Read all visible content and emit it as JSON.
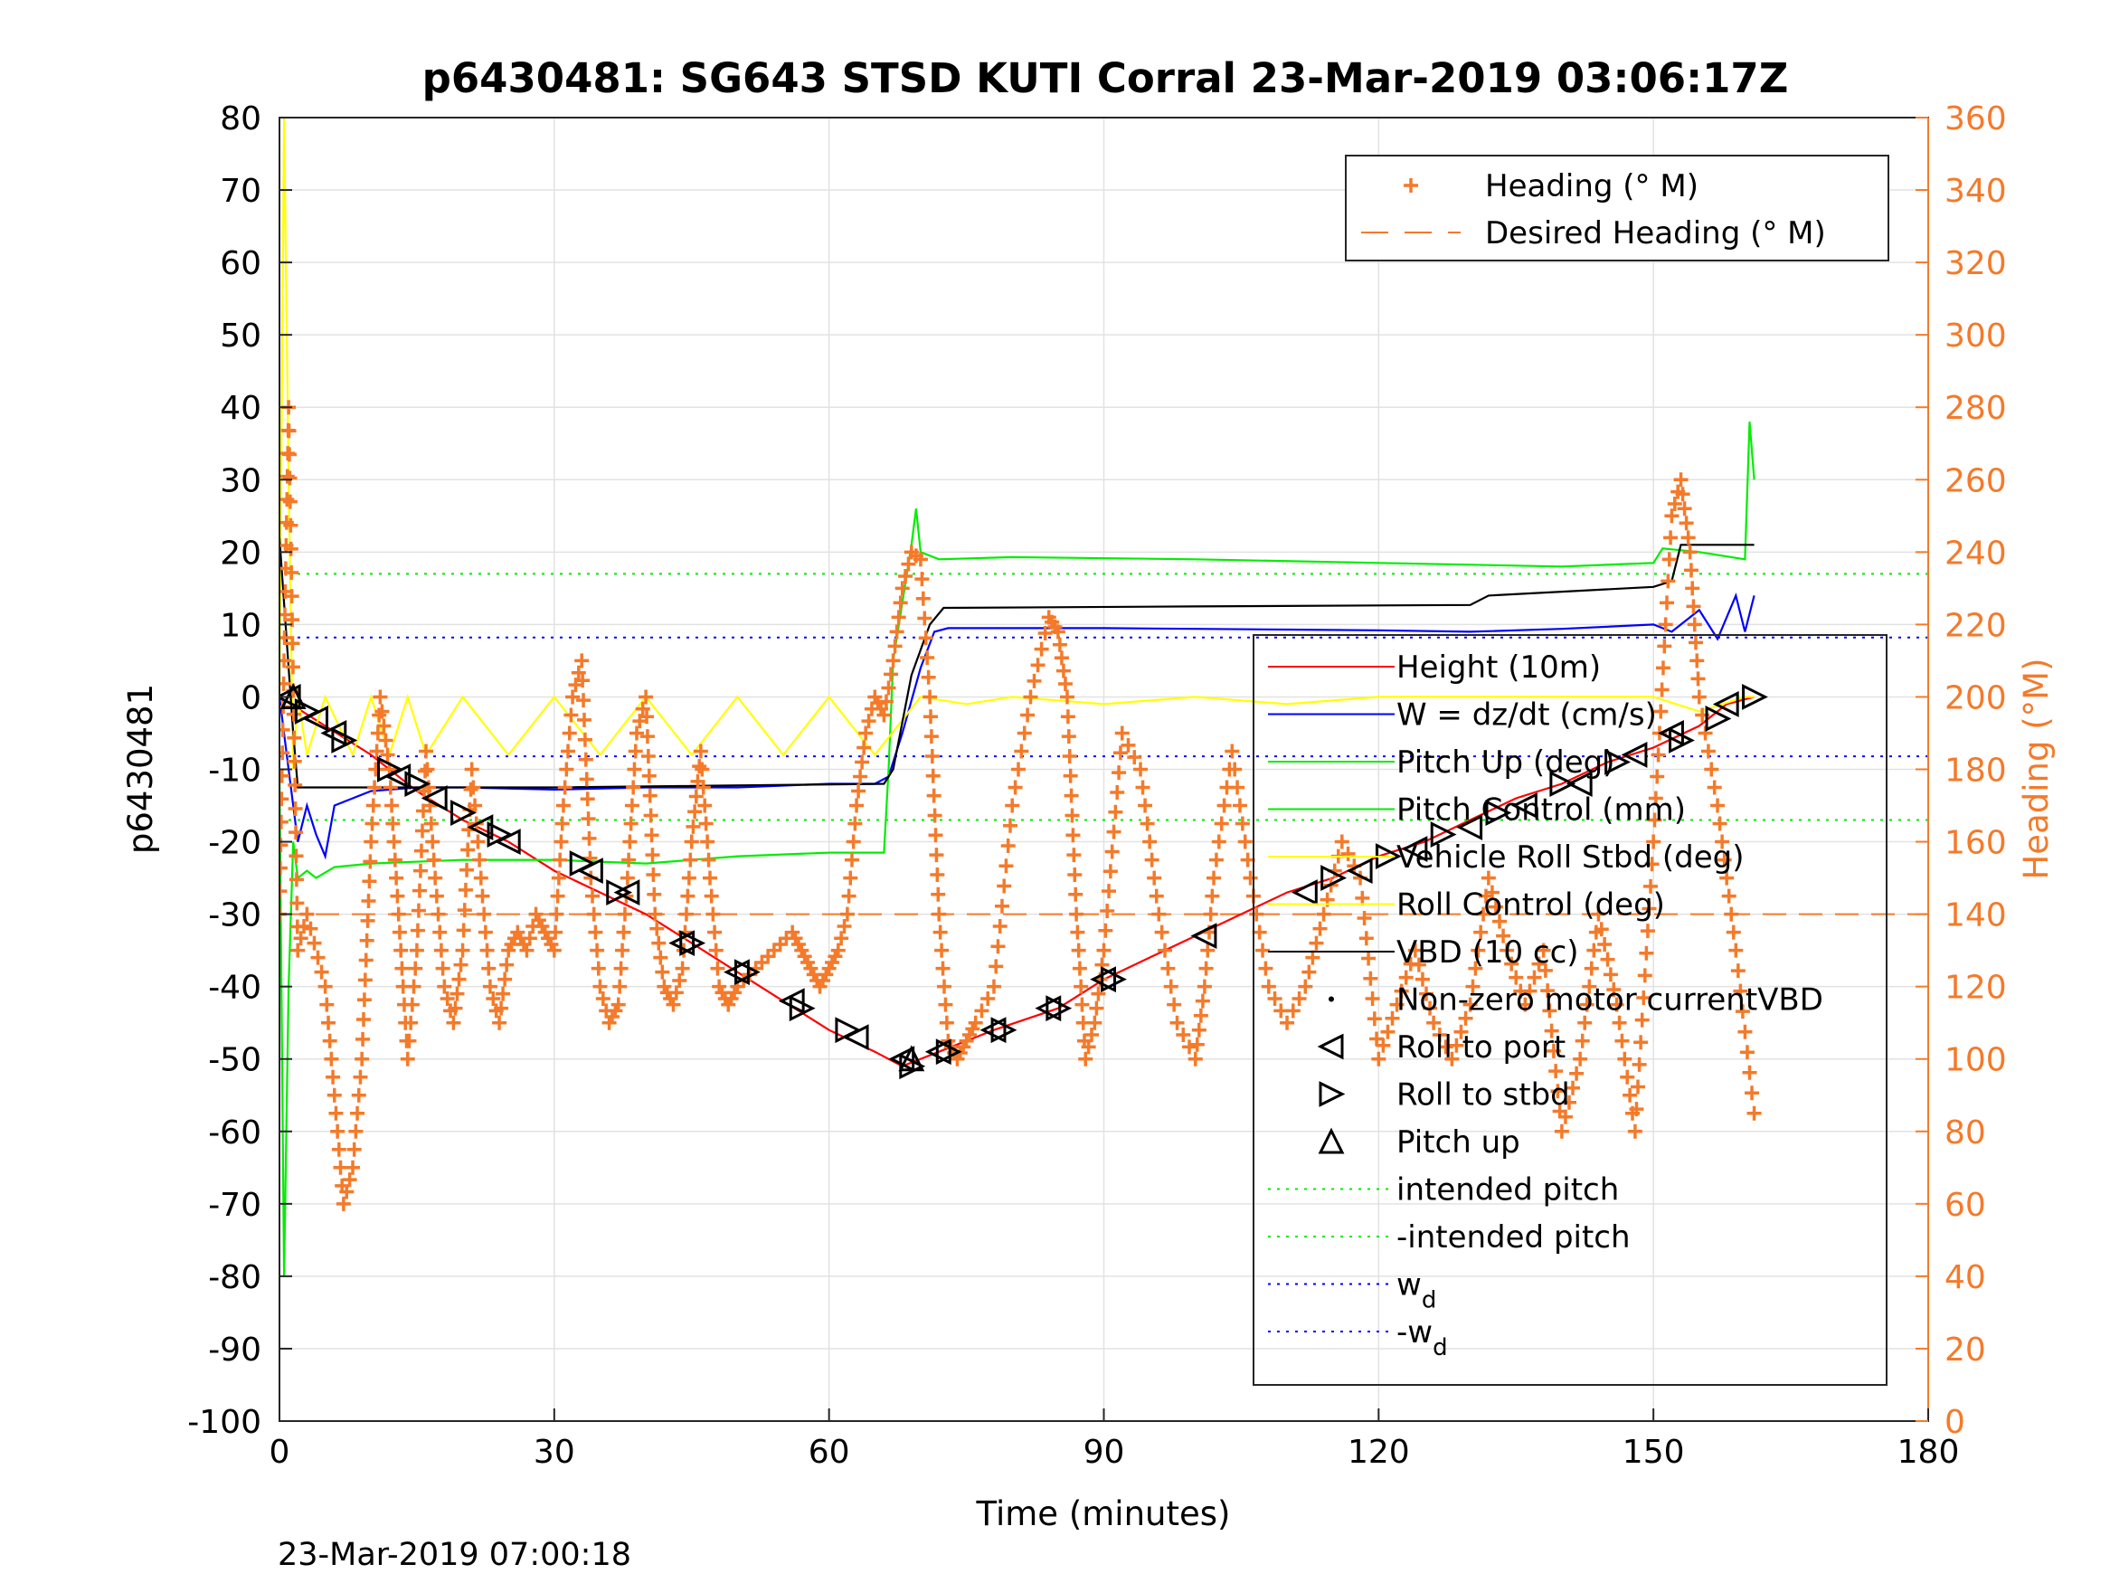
{
  "chart_data": {
    "type": "line",
    "title": "p6430481: SG643 STSD KUTI Corral 23-Mar-2019 03:06:17Z",
    "xlabel": "Time (minutes)",
    "ylabel": "p6430481",
    "ylabel_right": "Heading (°M)",
    "footer": "23-Mar-2019 07:00:18",
    "xlim": [
      0,
      180
    ],
    "ylim": [
      -100,
      80
    ],
    "ylim_right": [
      0,
      360
    ],
    "xticks": [
      "0",
      "30",
      "60",
      "90",
      "120",
      "150",
      "180"
    ],
    "yticks": [
      "80",
      "70",
      "60",
      "50",
      "40",
      "30",
      "20",
      "10",
      "0",
      "-10",
      "-20",
      "-30",
      "-40",
      "-50",
      "-60",
      "-70",
      "-80",
      "-90",
      "-100"
    ],
    "yticks_right": [
      "360",
      "340",
      "320",
      "300",
      "280",
      "260",
      "240",
      "220",
      "200",
      "180",
      "160",
      "140",
      "120",
      "100",
      "80",
      "60",
      "40",
      "20",
      "0"
    ],
    "grid": true,
    "colors": {
      "height": "#ff0000",
      "w": "#0000ff",
      "pitch": "#00ee00",
      "roll": "#ffff00",
      "vbd": "#000000",
      "heading": "#f47a2a"
    },
    "legend_top": [
      {
        "label": "Heading (° M)",
        "style": "plus",
        "color": "#f47a2a"
      },
      {
        "label": "Desired Heading (° M)",
        "style": "dash",
        "color": "#f47a2a"
      }
    ],
    "legend_main": [
      {
        "label": "Height (10m)",
        "style": "line",
        "color": "#ff0000"
      },
      {
        "label": "W = dz/dt (cm/s)",
        "style": "line",
        "color": "#0000ff"
      },
      {
        "label": "Pitch Up (deg)",
        "style": "line",
        "color": "#00ee00"
      },
      {
        "label": "Pitch Control (mm)",
        "style": "line",
        "color": "#00ee00"
      },
      {
        "label": "Vehicle Roll Stbd (deg)",
        "style": "line",
        "color": "#ffff00"
      },
      {
        "label": "Roll Control (deg)",
        "style": "line",
        "color": "#ffff00"
      },
      {
        "label": "VBD (10 cc)",
        "style": "line",
        "color": "#000000"
      },
      {
        "label": "Non-zero motor currentVBD",
        "style": "dot",
        "color": "#000000"
      },
      {
        "label": "Roll to port",
        "style": "tri-left",
        "color": "#000000"
      },
      {
        "label": "Roll to stbd",
        "style": "tri-right",
        "color": "#000000"
      },
      {
        "label": "Pitch up",
        "style": "tri-up",
        "color": "#000000"
      },
      {
        "label": "intended pitch",
        "style": "dotted",
        "color": "#00ee00"
      },
      {
        "label": "-intended pitch",
        "style": "dotted",
        "color": "#00ee00"
      },
      {
        "label": "w",
        "sub": "d",
        "style": "dotted",
        "color": "#0000ff"
      },
      {
        "label": "-w",
        "sub": "d",
        "style": "dotted",
        "color": "#0000ff"
      }
    ],
    "reference_lines": [
      {
        "name": "intended pitch",
        "y": 17,
        "color": "#00ee00",
        "style": "dotted"
      },
      {
        "name": "-intended pitch",
        "y": -17,
        "color": "#00ee00",
        "style": "dotted"
      },
      {
        "name": "w_d",
        "y": 8.2,
        "color": "#0000ff",
        "style": "dotted"
      },
      {
        "name": "-w_d",
        "y": -8.2,
        "color": "#0000ff",
        "style": "dotted"
      },
      {
        "name": "Desired Heading (° M)",
        "y": -30,
        "color": "#f47a2a",
        "style": "dash"
      }
    ],
    "series": [
      {
        "name": "Height (10m)",
        "color": "#ff0000",
        "x": [
          0,
          5,
          10,
          15,
          20,
          25,
          30,
          35,
          40,
          45,
          50,
          55,
          60,
          65,
          68,
          72,
          78,
          85,
          90,
          95,
          100,
          105,
          110,
          115,
          120,
          125,
          130,
          135,
          140,
          145,
          150,
          155,
          158,
          161
        ],
        "y": [
          0,
          -4,
          -8,
          -13,
          -17,
          -20,
          -24,
          -27,
          -30,
          -34,
          -38,
          -42,
          -46,
          -49,
          -51,
          -49,
          -46,
          -43,
          -39,
          -36,
          -33,
          -30,
          -27,
          -25,
          -22,
          -20,
          -17,
          -14,
          -12,
          -9,
          -7,
          -4,
          -1,
          0
        ]
      },
      {
        "name": "W = dz/dt (cm/s)",
        "color": "#0000ff",
        "x": [
          0,
          1,
          2,
          3,
          4,
          5,
          6,
          8,
          10,
          15,
          20,
          30,
          40,
          50,
          60,
          65,
          66.5,
          68,
          70,
          71.5,
          73,
          80,
          90,
          100,
          110,
          120,
          130,
          140,
          150,
          152,
          155,
          157,
          159,
          160,
          161
        ],
        "y": [
          0,
          -10,
          -20,
          -15,
          -19,
          -22,
          -15,
          -14,
          -13,
          -12.5,
          -12.5,
          -12.8,
          -12.5,
          -12.5,
          -12,
          -12,
          -11,
          -5,
          4,
          9,
          9.5,
          9.5,
          9.5,
          9.4,
          9.3,
          9.2,
          9,
          9.4,
          10,
          9,
          12,
          8,
          14,
          9,
          14
        ]
      },
      {
        "name": "Pitch Up (deg)",
        "color": "#00ee00",
        "x": [
          0,
          0.5,
          1,
          1.5,
          2,
          3,
          4,
          6,
          10,
          20,
          30,
          40,
          50,
          60,
          66,
          66.5,
          67,
          69,
          69.5,
          70,
          72,
          80,
          100,
          120,
          140,
          150,
          151,
          155,
          160,
          160.5,
          161
        ],
        "y": [
          -10,
          -80,
          -40,
          -20,
          -25,
          -24,
          -25,
          -23.5,
          -23,
          -22.5,
          -22.5,
          -23,
          -22,
          -21.5,
          -21.5,
          -10,
          5,
          21,
          26,
          20,
          19,
          19.3,
          19,
          18.5,
          18,
          18.5,
          20.5,
          20,
          19,
          38,
          30
        ]
      },
      {
        "name": "Vehicle Roll Stbd (deg)",
        "color": "#ffff00",
        "x": [
          0,
          0.5,
          1,
          1.5,
          2,
          3,
          5,
          8,
          10,
          12,
          14,
          16,
          20,
          25,
          30,
          35,
          40,
          45,
          50,
          55,
          60,
          65,
          70,
          75,
          80,
          90,
          100,
          110,
          120,
          130,
          140,
          150,
          155,
          160,
          161
        ],
        "y": [
          0,
          80,
          30,
          -10,
          0,
          -8,
          0,
          -8,
          0,
          -8,
          0,
          -8,
          0,
          -8,
          0,
          -8,
          0,
          -8,
          0,
          -8,
          0,
          -8,
          0,
          -1,
          0,
          -1,
          0,
          -1,
          0,
          0,
          0,
          0,
          -2,
          0,
          0
        ]
      },
      {
        "name": "VBD (10 cc)",
        "color": "#000000",
        "x": [
          0,
          1.5,
          2,
          30,
          66,
          67,
          69,
          71,
          72.5,
          100,
          130,
          132,
          150,
          152,
          153,
          161
        ],
        "y": [
          22,
          -5,
          -12.5,
          -12.5,
          -12,
          -10,
          3,
          10,
          12.3,
          12.5,
          12.7,
          14,
          15.2,
          16,
          21,
          21
        ]
      },
      {
        "name": "Heading (° M)",
        "color": "#f47a2a",
        "axis": "right",
        "x": [
          0,
          1,
          2,
          3,
          5,
          6,
          7,
          8,
          9,
          10,
          11,
          12,
          13,
          14,
          15,
          16,
          17,
          18,
          19,
          20,
          21,
          22,
          23,
          24,
          25,
          26,
          27,
          28,
          29,
          30,
          31,
          32,
          33,
          34,
          35,
          36,
          37,
          38,
          39,
          40,
          41,
          42,
          43,
          44,
          45,
          46,
          47,
          48,
          49,
          50,
          52,
          54,
          56,
          57,
          58,
          59,
          60,
          61,
          62,
          63,
          64,
          65,
          66,
          67,
          68,
          69,
          70,
          71,
          72,
          73,
          74,
          75,
          76,
          78,
          80,
          82,
          84,
          85,
          86,
          87,
          88,
          89,
          90,
          92,
          94,
          96,
          98,
          100,
          101,
          102,
          104,
          106,
          108,
          110,
          112,
          114,
          116,
          118,
          120,
          122,
          124,
          126,
          128,
          130,
          132,
          134,
          136,
          138,
          140,
          142,
          144,
          146,
          148,
          150,
          152,
          153,
          154,
          155,
          157,
          159,
          161
        ],
        "y": [
          140,
          280,
          130,
          140,
          120,
          90,
          60,
          70,
          100,
          160,
          200,
          180,
          140,
          100,
          130,
          185,
          150,
          120,
          110,
          130,
          180,
          150,
          120,
          110,
          130,
          135,
          130,
          140,
          135,
          130,
          170,
          200,
          210,
          150,
          120,
          110,
          115,
          150,
          190,
          200,
          140,
          120,
          115,
          125,
          160,
          185,
          150,
          120,
          115,
          120,
          125,
          130,
          135,
          130,
          125,
          120,
          125,
          130,
          140,
          170,
          190,
          200,
          195,
          210,
          230,
          240,
          238,
          200,
          140,
          105,
          100,
          105,
          110,
          120,
          170,
          200,
          222,
          218,
          200,
          140,
          100,
          110,
          130,
          190,
          180,
          140,
          110,
          100,
          120,
          150,
          185,
          150,
          120,
          110,
          120,
          140,
          160,
          150,
          100,
          115,
          130,
          110,
          100,
          115,
          150,
          130,
          115,
          130,
          80,
          100,
          140,
          115,
          80,
          160,
          250,
          260,
          240,
          200,
          170,
          130,
          85
        ]
      }
    ],
    "markers": {
      "roll_to_port": {
        "x": [
          1,
          4,
          6,
          13,
          17,
          22,
          25,
          34,
          38,
          44,
          50,
          56,
          63,
          68,
          72,
          78,
          84,
          90,
          101,
          112,
          118,
          124,
          130,
          136,
          142,
          148,
          152,
          158
        ],
        "y": [
          0,
          -3,
          -5,
          -11,
          -14,
          -18,
          -20,
          -24,
          -27,
          -34,
          -38,
          -42,
          -47,
          -50,
          -49,
          -46,
          -43,
          -39,
          -33,
          -27,
          -24,
          -21,
          -18,
          -15,
          -12,
          -8,
          -5,
          -1
        ]
      },
      "roll_to_stbd": {
        "x": [
          3,
          7,
          12,
          15,
          20,
          24,
          33,
          37,
          45,
          51,
          57,
          62,
          69,
          73,
          79,
          85,
          91,
          115,
          121,
          127,
          133,
          140,
          146,
          153,
          157,
          161
        ],
        "y": [
          -2,
          -6,
          -10,
          -12,
          -16,
          -19,
          -23,
          -27,
          -34,
          -38,
          -43,
          -46,
          -51,
          -49,
          -46,
          -43,
          -39,
          -25,
          -22,
          -19,
          -16,
          -12,
          -9,
          -6,
          -3,
          0
        ]
      },
      "pitch_up": {
        "x": [
          1.5,
          69
        ],
        "y": [
          0,
          -50
        ]
      }
    }
  }
}
